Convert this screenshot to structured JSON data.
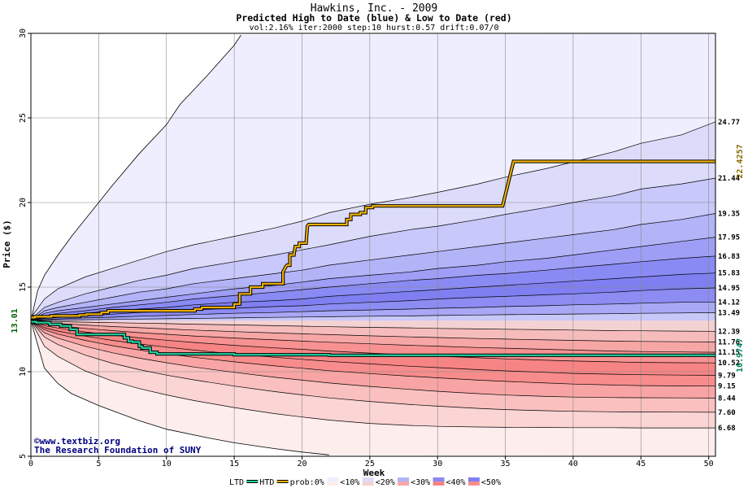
{
  "chart_data": {
    "type": "area",
    "title": "Hawkins, Inc. - 2009",
    "subtitle": "Predicted High to Date (blue) &  Low to Date (red)",
    "params": "vol:2.16% iter:2000 step:10 hurst:0.57 drift:0.07/0",
    "xlabel": "Week",
    "ylabel": "Price ($)",
    "xlim": [
      0,
      50.5
    ],
    "ylim": [
      5,
      30
    ],
    "x_ticks": [
      0,
      5,
      10,
      15,
      20,
      25,
      30,
      35,
      40,
      45,
      50
    ],
    "y_ticks": [
      5,
      10,
      15,
      20,
      25,
      30
    ],
    "grid": true,
    "start_price": 13.01,
    "start_price_label": "13.01",
    "weeks": [
      0,
      1,
      2,
      4,
      6,
      8,
      10,
      12,
      15,
      18,
      20,
      22,
      25,
      28,
      30,
      33,
      35,
      38,
      40,
      43,
      45,
      48,
      50.5
    ],
    "upper_bands": [
      {
        "label": "24.77",
        "values": [
          13.2,
          14.3,
          14.9,
          15.6,
          16.1,
          16.6,
          17.1,
          17.5,
          18.0,
          18.5,
          18.9,
          19.4,
          19.9,
          20.3,
          20.6,
          21.1,
          21.5,
          22.0,
          22.4,
          23.0,
          23.5,
          24.0,
          24.77
        ]
      },
      {
        "label": "21.44",
        "values": [
          13.1,
          13.8,
          14.1,
          14.6,
          15.0,
          15.4,
          15.7,
          16.1,
          16.5,
          16.9,
          17.2,
          17.5,
          18.0,
          18.4,
          18.6,
          19.0,
          19.3,
          19.7,
          20.0,
          20.4,
          20.8,
          21.1,
          21.44
        ]
      },
      {
        "label": "19.35",
        "values": [
          13.05,
          13.6,
          13.8,
          14.1,
          14.4,
          14.7,
          14.9,
          15.2,
          15.5,
          15.8,
          16.0,
          16.3,
          16.6,
          16.9,
          17.1,
          17.4,
          17.6,
          17.9,
          18.1,
          18.4,
          18.7,
          19.0,
          19.35
        ]
      },
      {
        "label": "17.95",
        "values": [
          13.02,
          13.45,
          13.6,
          13.8,
          14.0,
          14.2,
          14.4,
          14.6,
          14.9,
          15.1,
          15.3,
          15.5,
          15.7,
          15.9,
          16.1,
          16.3,
          16.5,
          16.7,
          16.9,
          17.2,
          17.4,
          17.7,
          17.95
        ]
      },
      {
        "label": "16.83",
        "values": [
          13.01,
          13.3,
          13.45,
          13.6,
          13.8,
          13.95,
          14.1,
          14.3,
          14.5,
          14.7,
          14.85,
          15.0,
          15.2,
          15.4,
          15.5,
          15.7,
          15.8,
          16.0,
          16.15,
          16.35,
          16.5,
          16.7,
          16.83
        ]
      },
      {
        "label": "15.83",
        "values": [
          13.01,
          13.2,
          13.3,
          13.45,
          13.6,
          13.7,
          13.8,
          13.95,
          14.1,
          14.2,
          14.3,
          14.45,
          14.6,
          14.75,
          14.85,
          15.0,
          15.1,
          15.25,
          15.35,
          15.5,
          15.6,
          15.75,
          15.83
        ]
      },
      {
        "label": "14.95",
        "values": [
          13.01,
          13.15,
          13.2,
          13.3,
          13.4,
          13.5,
          13.55,
          13.65,
          13.75,
          13.85,
          13.9,
          14.0,
          14.1,
          14.2,
          14.3,
          14.4,
          14.45,
          14.55,
          14.6,
          14.7,
          14.8,
          14.9,
          14.95
        ]
      },
      {
        "label": "14.12",
        "values": [
          13.01,
          13.08,
          13.12,
          13.18,
          13.22,
          13.28,
          13.32,
          13.38,
          13.45,
          13.5,
          13.55,
          13.6,
          13.65,
          13.7,
          13.75,
          13.8,
          13.85,
          13.9,
          13.95,
          14.0,
          14.05,
          14.1,
          14.12
        ]
      },
      {
        "label": "13.49",
        "values": [
          13.01,
          13.03,
          13.05,
          13.07,
          13.09,
          13.11,
          13.13,
          13.15,
          13.18,
          13.21,
          13.23,
          13.25,
          13.28,
          13.3,
          13.32,
          13.35,
          13.37,
          13.39,
          13.41,
          13.43,
          13.45,
          13.47,
          13.49
        ]
      }
    ],
    "lower_bands": [
      {
        "label": "12.39",
        "values": [
          13.01,
          12.98,
          12.96,
          12.93,
          12.9,
          12.87,
          12.84,
          12.81,
          12.77,
          12.72,
          12.69,
          12.66,
          12.62,
          12.59,
          12.56,
          12.53,
          12.51,
          12.48,
          12.46,
          12.43,
          12.42,
          12.4,
          12.39
        ]
      },
      {
        "label": "11.76",
        "values": [
          13.01,
          12.9,
          12.85,
          12.76,
          12.67,
          12.6,
          12.53,
          12.46,
          12.37,
          12.29,
          12.24,
          12.19,
          12.12,
          12.06,
          12.02,
          11.96,
          11.93,
          11.88,
          11.85,
          11.81,
          11.79,
          11.77,
          11.76
        ]
      },
      {
        "label": "11.15",
        "values": [
          13.01,
          12.82,
          12.72,
          12.56,
          12.43,
          12.31,
          12.21,
          12.11,
          11.99,
          11.88,
          11.81,
          11.74,
          11.65,
          11.56,
          11.51,
          11.43,
          11.39,
          11.32,
          11.28,
          11.22,
          11.19,
          11.17,
          11.15
        ]
      },
      {
        "label": "10.52",
        "values": [
          13.01,
          12.72,
          12.58,
          12.35,
          12.16,
          12.0,
          11.86,
          11.73,
          11.56,
          11.41,
          11.32,
          11.22,
          11.1,
          10.98,
          10.92,
          10.82,
          10.76,
          10.68,
          10.63,
          10.58,
          10.55,
          10.53,
          10.52
        ]
      },
      {
        "label": "9.79",
        "values": [
          13.01,
          12.6,
          12.4,
          12.1,
          11.85,
          11.64,
          11.45,
          11.28,
          11.05,
          10.85,
          10.73,
          10.61,
          10.46,
          10.32,
          10.24,
          10.12,
          10.05,
          9.96,
          9.9,
          9.85,
          9.82,
          9.8,
          9.79
        ]
      },
      {
        "label": "9.15",
        "values": [
          13.01,
          12.48,
          12.22,
          11.85,
          11.54,
          11.28,
          11.06,
          10.85,
          10.58,
          10.34,
          10.2,
          10.06,
          9.89,
          9.73,
          9.64,
          9.5,
          9.43,
          9.33,
          9.27,
          9.21,
          9.18,
          9.16,
          9.15
        ]
      },
      {
        "label": "8.44",
        "values": [
          13.01,
          12.3,
          11.98,
          11.5,
          11.12,
          10.8,
          10.53,
          10.28,
          9.96,
          9.67,
          9.5,
          9.33,
          9.13,
          8.95,
          8.84,
          8.7,
          8.62,
          8.54,
          8.5,
          8.47,
          8.46,
          8.45,
          8.44
        ]
      },
      {
        "label": "7.60",
        "values": [
          13.01,
          12.05,
          11.6,
          10.98,
          10.5,
          10.12,
          9.8,
          9.52,
          9.15,
          8.82,
          8.63,
          8.45,
          8.24,
          8.06,
          7.96,
          7.83,
          7.76,
          7.69,
          7.66,
          7.63,
          7.62,
          7.61,
          7.6
        ]
      },
      {
        "label": "6.68",
        "values": [
          13.01,
          11.5,
          10.9,
          10.05,
          9.45,
          9.0,
          8.63,
          8.3,
          7.88,
          7.52,
          7.32,
          7.14,
          6.94,
          6.82,
          6.77,
          6.73,
          6.71,
          6.7,
          6.69,
          6.69,
          6.68,
          6.68,
          6.68
        ]
      }
    ],
    "outer_upper": {
      "x": [
        0,
        0.5,
        1,
        2,
        3,
        4,
        5,
        6,
        8,
        10,
        11,
        13,
        15,
        15.5
      ],
      "y": [
        13.01,
        14.8,
        15.7,
        16.9,
        18.0,
        19.0,
        20.0,
        21.0,
        22.9,
        24.6,
        25.8,
        27.5,
        29.3,
        29.9
      ]
    },
    "outer_lower": {
      "x": [
        0,
        1,
        2,
        3,
        5,
        8,
        10,
        13,
        15,
        18,
        20,
        22
      ],
      "y": [
        13.01,
        10.2,
        9.3,
        8.7,
        8.0,
        7.1,
        6.6,
        6.1,
        5.8,
        5.45,
        5.25,
        5.08
      ]
    },
    "htd_series": {
      "name": "HTD",
      "end_label": "22.4257",
      "x": [
        0,
        0.3,
        0.3,
        1.5,
        1.5,
        3.6,
        3.6,
        4.1,
        4.1,
        5.2,
        5.2,
        5.7,
        5.7,
        12.1,
        12.1,
        12.6,
        12.6,
        15.0,
        15.0,
        15.4,
        15.4,
        16.2,
        16.2,
        17.1,
        17.1,
        18.6,
        18.6,
        18.8,
        18.9,
        19.1,
        19.1,
        19.4,
        19.5,
        19.8,
        19.8,
        20.3,
        20.4,
        20.5,
        20.5,
        23.3,
        23.3,
        23.6,
        23.6,
        24.3,
        24.3,
        24.7,
        24.7,
        25.2,
        25.2,
        34.8,
        35.6,
        50.5
      ],
      "y": [
        13.2,
        13.2,
        13.25,
        13.25,
        13.3,
        13.3,
        13.35,
        13.35,
        13.4,
        13.4,
        13.5,
        13.5,
        13.6,
        13.6,
        13.7,
        13.7,
        13.8,
        13.8,
        14.0,
        14.0,
        14.6,
        14.6,
        15.0,
        15.0,
        15.2,
        15.2,
        15.9,
        16.2,
        16.3,
        16.3,
        16.9,
        16.9,
        17.4,
        17.4,
        17.6,
        17.6,
        18.6,
        18.7,
        18.7,
        18.7,
        19.0,
        19.0,
        19.3,
        19.3,
        19.4,
        19.4,
        19.7,
        19.7,
        19.8,
        19.8,
        22.43,
        22.43
      ]
    },
    "ltd_series": {
      "name": "LTD",
      "end_label": "10.9747",
      "x": [
        0,
        0.4,
        0.4,
        1.4,
        1.4,
        2.2,
        2.2,
        2.9,
        2.9,
        3.4,
        3.4,
        6.9,
        6.9,
        7.2,
        7.2,
        7.5,
        7.5,
        8.0,
        8.0,
        8.2,
        8.2,
        8.8,
        8.8,
        9.3,
        9.3,
        15.0,
        15.0,
        22.0,
        22.0,
        50.5
      ],
      "y": [
        12.95,
        12.95,
        12.9,
        12.9,
        12.8,
        12.8,
        12.7,
        12.7,
        12.5,
        12.5,
        12.2,
        12.2,
        12.0,
        12.0,
        11.8,
        11.8,
        11.75,
        11.75,
        11.5,
        11.5,
        11.4,
        11.4,
        11.15,
        11.15,
        11.05,
        11.05,
        11.0,
        11.0,
        10.97,
        10.97
      ]
    },
    "colors": {
      "upper_fills": [
        "#dcdcfa",
        "#c8c8fa",
        "#b3b3f8",
        "#9e9ef6",
        "#8a8af4",
        "#7f7ff2",
        "#8c8cf2",
        "#a8a8f6",
        "#c8c8f8"
      ],
      "upper_outer_fill": "#eeeeff",
      "lower_fills": [
        "#f5d2d2",
        "#f6bcbc",
        "#f7a6a6",
        "#f89292",
        "#f78484",
        "#f88c8c",
        "#f9a4a4",
        "#fac0c0",
        "#fbd4d4"
      ],
      "lower_outer_fill": "#fdeded",
      "htd_line": "#f0b000",
      "ltd_line": "#20d0a0",
      "htd_label": "#8b6b00",
      "ltd_label": "#008060",
      "start_label": "#006000",
      "grid": "#888888"
    },
    "legend": {
      "items": [
        "LTD",
        "HTD",
        "prob:0%",
        "<10%",
        "<20%",
        "<30%",
        "<40%",
        "<50%"
      ],
      "placement": "bottom"
    }
  },
  "credits": {
    "line1": "www.textbiz.org",
    "line2": "The Research Foundation of SUNY",
    "symbol": "©"
  }
}
